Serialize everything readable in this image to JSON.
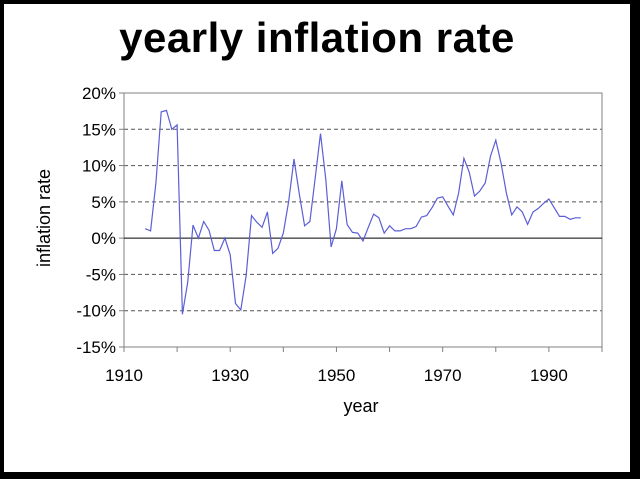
{
  "chart_data": {
    "type": "line",
    "title": "yearly inflation rate",
    "xlabel": "year",
    "ylabel": "inflation rate",
    "xlim": [
      1910,
      2000
    ],
    "ylim": [
      -15,
      20
    ],
    "x_ticks": [
      "1910",
      "1930",
      "1950",
      "1970",
      "1990"
    ],
    "y_ticks": [
      "20%",
      "15%",
      "10%",
      "5%",
      "0%",
      "-5%",
      "-10%",
      "-15%"
    ],
    "grid": "horizontal dashed",
    "line_color": "#5b5fd6",
    "series": [
      {
        "name": "",
        "x": [
          1914,
          1915,
          1916,
          1917,
          1918,
          1919,
          1920,
          1921,
          1922,
          1923,
          1924,
          1925,
          1926,
          1927,
          1928,
          1929,
          1930,
          1931,
          1932,
          1933,
          1934,
          1935,
          1936,
          1937,
          1938,
          1939,
          1940,
          1941,
          1942,
          1943,
          1944,
          1945,
          1946,
          1947,
          1948,
          1949,
          1950,
          1951,
          1952,
          1953,
          1954,
          1955,
          1956,
          1957,
          1958,
          1959,
          1960,
          1961,
          1962,
          1963,
          1964,
          1965,
          1966,
          1967,
          1968,
          1969,
          1970,
          1971,
          1972,
          1973,
          1974,
          1975,
          1976,
          1977,
          1978,
          1979,
          1980,
          1981,
          1982,
          1983,
          1984,
          1985,
          1986,
          1987,
          1988,
          1989,
          1990,
          1991,
          1992,
          1993,
          1994,
          1995,
          1996
        ],
        "y": [
          1.3,
          1.0,
          7.6,
          17.4,
          17.6,
          15.0,
          15.6,
          -10.5,
          -6.1,
          1.8,
          0.0,
          2.3,
          1.1,
          -1.7,
          -1.7,
          0.0,
          -2.3,
          -9.0,
          -9.9,
          -5.1,
          3.1,
          2.2,
          1.5,
          3.6,
          -2.1,
          -1.4,
          0.7,
          5.0,
          10.9,
          6.1,
          1.7,
          2.3,
          8.3,
          14.4,
          8.1,
          -1.2,
          1.3,
          7.9,
          1.9,
          0.8,
          0.7,
          -0.4,
          1.5,
          3.3,
          2.8,
          0.7,
          1.7,
          1.0,
          1.0,
          1.3,
          1.3,
          1.6,
          2.9,
          3.1,
          4.2,
          5.5,
          5.7,
          4.4,
          3.2,
          6.2,
          11.0,
          9.1,
          5.8,
          6.5,
          7.6,
          11.3,
          13.5,
          10.3,
          6.2,
          3.2,
          4.3,
          3.6,
          1.9,
          3.6,
          4.1,
          4.8,
          5.4,
          4.2,
          3.0,
          3.0,
          2.6,
          2.8,
          2.8
        ]
      }
    ]
  }
}
